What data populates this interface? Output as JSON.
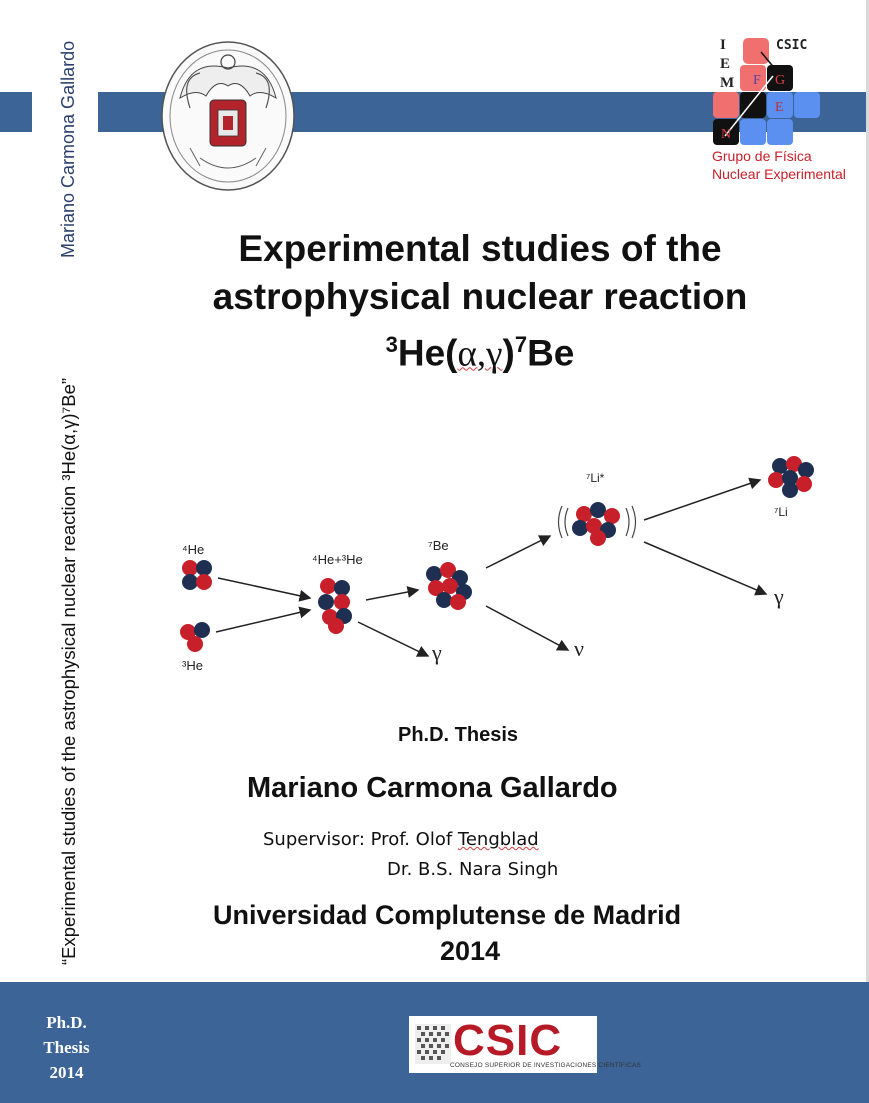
{
  "spine": {
    "author": "Mariano Carmona Gallardo",
    "title": "“Experimental studies of the astrophysical nuclear reaction ³He(α,γ)⁷Be”"
  },
  "logos": {
    "left_seal": "university-seal",
    "iem_letters": [
      "I",
      "E",
      "M"
    ],
    "csic_small": "CSIC",
    "group_lines": [
      "Grupo de Física",
      "Nuclear Experimental"
    ],
    "grid_letters": {
      "f": "F",
      "g": "G",
      "e": "E",
      "n": "N"
    }
  },
  "title": {
    "line1": "Experimental studies of the",
    "line2": "astrophysical nuclear reaction",
    "line3_pre": "3",
    "line3_main": "He(",
    "line3_greek": "α,γ",
    "line3_close": ")",
    "line3_sup": "7",
    "line3_end": "Be"
  },
  "diagram": {
    "he4": "⁴He",
    "he3": "³He",
    "he4he3": "⁴He+³He",
    "be7": "⁷Be",
    "li7star": "⁷Li*",
    "li7": "⁷Li",
    "gamma1": "γ",
    "nu": "ν",
    "gamma2": "γ"
  },
  "phd_label": "Ph.D. Thesis",
  "author": "Mariano Carmona Gallardo",
  "supervisor": {
    "line1_prefix": "Supervisor: Prof. Olof ",
    "line1_surname": "Tengblad",
    "line2": "Dr. B.S. Nara Singh"
  },
  "university": "Universidad Complutense de Madrid",
  "year": "2014",
  "footer": {
    "lines": [
      "Ph.D.",
      "Thesis",
      "2014"
    ],
    "csic_word": "CSIC",
    "csic_sub": "CONSEJO SUPERIOR DE INVESTIGACIONES CIENTÍFICAS"
  },
  "colors": {
    "band": "#3c6496",
    "proton": "#c8202a",
    "neutron": "#1e2f52",
    "csic_red": "#b51a26"
  }
}
